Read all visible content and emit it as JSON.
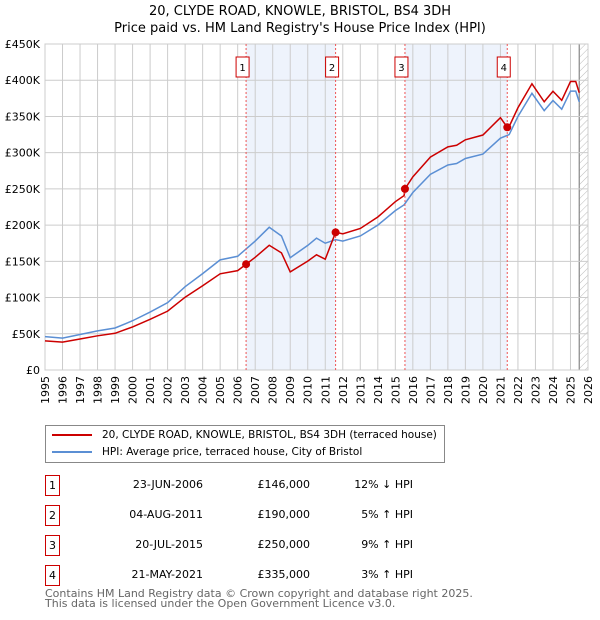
{
  "chart_data": {
    "type": "line",
    "title": "20, CLYDE ROAD, KNOWLE, BRISTOL, BS4 3DH",
    "subtitle": "Price paid vs. HM Land Registry's House Price Index (HPI)",
    "xlim": [
      1995,
      2026
    ],
    "ylim": [
      0,
      450000
    ],
    "yticks": [
      {
        "v": 0,
        "label": "£0"
      },
      {
        "v": 50000,
        "label": "£50K"
      },
      {
        "v": 100000,
        "label": "£100K"
      },
      {
        "v": 150000,
        "label": "£150K"
      },
      {
        "v": 200000,
        "label": "£200K"
      },
      {
        "v": 250000,
        "label": "£250K"
      },
      {
        "v": 300000,
        "label": "£300K"
      },
      {
        "v": 350000,
        "label": "£350K"
      },
      {
        "v": 400000,
        "label": "£400K"
      },
      {
        "v": 450000,
        "label": "£450K"
      }
    ],
    "xticks": [
      "1995",
      "1996",
      "1997",
      "1998",
      "1999",
      "2000",
      "2001",
      "2002",
      "2003",
      "2004",
      "2005",
      "2006",
      "2007",
      "2008",
      "2009",
      "2010",
      "2011",
      "2012",
      "2013",
      "2014",
      "2015",
      "2016",
      "2017",
      "2018",
      "2019",
      "2020",
      "2021",
      "2022",
      "2023",
      "2024",
      "2025",
      "2026"
    ],
    "hpi": {
      "name": "HPI: Average price, terraced house, City of Bristol",
      "color": "#5b8fd4",
      "x": [
        1995,
        1996,
        1997,
        1998,
        1999,
        2000,
        2001,
        2002,
        2003,
        2004,
        2005,
        2006,
        2007,
        2007.8,
        2008.5,
        2009,
        2010,
        2010.5,
        2011,
        2011.6,
        2012,
        2013,
        2014,
        2015,
        2015.5,
        2016,
        2017,
        2018,
        2018.5,
        2019,
        2020,
        2021,
        2021.5,
        2022,
        2022.8,
        2023.5,
        2024,
        2024.5,
        2025,
        2025.3,
        2025.5
      ],
      "y": [
        46000,
        44000,
        49000,
        54000,
        58000,
        68000,
        80000,
        93000,
        115000,
        133000,
        152000,
        157000,
        178000,
        197000,
        185000,
        155000,
        172000,
        182000,
        175000,
        180000,
        178000,
        185000,
        200000,
        220000,
        228000,
        245000,
        270000,
        283000,
        285000,
        292000,
        298000,
        320000,
        325000,
        350000,
        382000,
        358000,
        372000,
        360000,
        385000,
        385000,
        370000
      ]
    },
    "property": {
      "name": "20, CLYDE ROAD, KNOWLE, BRISTOL, BS4 3DH (terraced house)",
      "color": "#cc0000"
    },
    "sales": [
      {
        "n": "1",
        "x": 2006.48,
        "date": "23-JUN-2006",
        "price": 146000,
        "price_label": "£146,000",
        "hpi": "12% ↓ HPI"
      },
      {
        "n": "2",
        "x": 2011.59,
        "date": "04-AUG-2011",
        "price": 190000,
        "price_label": "£190,000",
        "hpi": "5% ↑ HPI"
      },
      {
        "n": "3",
        "x": 2015.55,
        "date": "20-JUL-2015",
        "price": 250000,
        "price_label": "£250,000",
        "hpi": "9% ↑ HPI"
      },
      {
        "n": "4",
        "x": 2021.39,
        "date": "21-MAY-2021",
        "price": 335000,
        "price_label": "£335,000",
        "hpi": "3% ↑ HPI"
      }
    ]
  },
  "footer": {
    "line1": "Contains HM Land Registry data © Crown copyright and database right 2025.",
    "line2": "This data is licensed under the Open Government Licence v3.0."
  }
}
